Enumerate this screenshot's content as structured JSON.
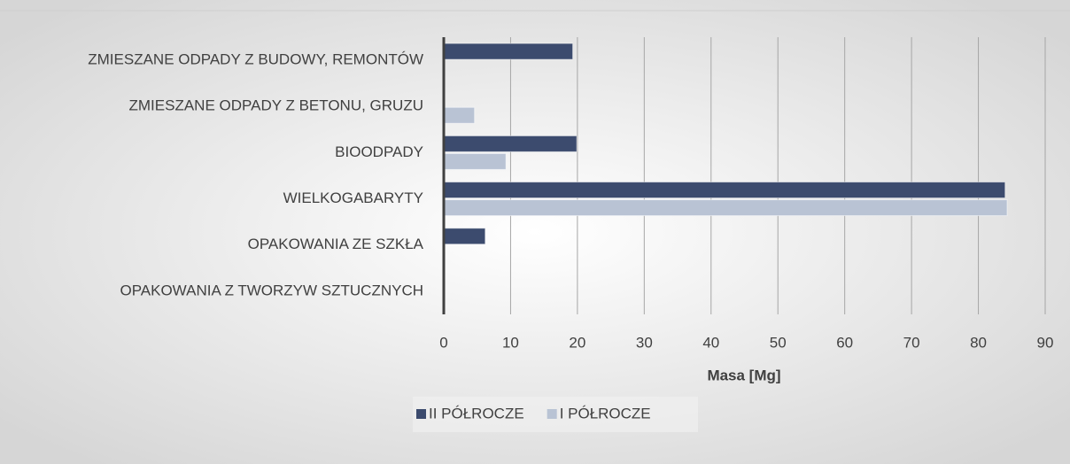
{
  "chart_data": {
    "type": "bar",
    "orientation": "horizontal",
    "categories": [
      "ZMIESZANE ODPADY Z BUDOWY, REMONTÓW",
      "ZMIESZANE ODPADY Z BETONU, GRUZU",
      "BIOODPADY",
      "WIELKOGABARYTY",
      "OPAKOWANIA ZE SZKŁA",
      "OPAKOWANIA Z TWORZYW SZTUCZNYCH"
    ],
    "series": [
      {
        "name": "II PÓŁROCZE",
        "color": "#3c4b6e",
        "values": [
          19.3,
          0,
          19.9,
          84,
          6.2,
          0
        ]
      },
      {
        "name": "I PÓŁROCZE",
        "color": "#b9c3d4",
        "values": [
          0,
          4.6,
          9.3,
          84.3,
          0,
          0
        ]
      }
    ],
    "xlabel": "Masa [Mg]",
    "xlim": [
      0,
      90
    ],
    "xticks": [
      0,
      10,
      20,
      30,
      40,
      50,
      60,
      70,
      80,
      90
    ],
    "grid": true,
    "legend": "bottom"
  }
}
